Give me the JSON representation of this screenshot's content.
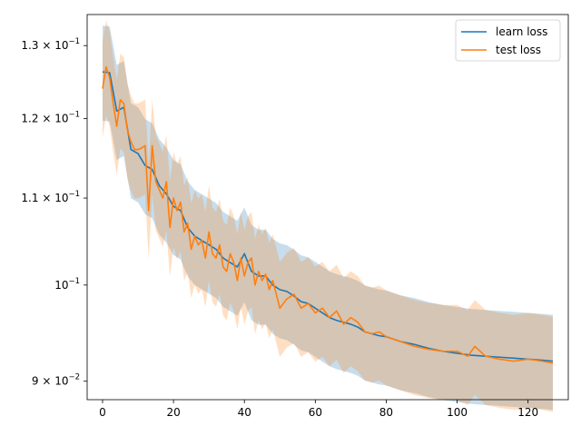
{
  "chart_data": {
    "type": "line",
    "title": "",
    "xlabel": "",
    "ylabel": "",
    "yscale": "log",
    "xlim": [
      -4.35,
      131.35
    ],
    "ylim": [
      0.0882,
      0.1345
    ],
    "grid": false,
    "legend_position": "top-right",
    "xticks": [
      0,
      20,
      40,
      60,
      80,
      100,
      120
    ],
    "xtick_labels": [
      "0",
      "20",
      "40",
      "60",
      "80",
      "100",
      "120"
    ],
    "yticks": [
      0.09,
      0.1,
      0.11,
      0.12,
      0.13
    ],
    "ytick_labels": [
      {
        "base": "9",
        "times": "×",
        "mant": "10",
        "exp": "−2"
      },
      {
        "base": "",
        "times": "",
        "mant": "10",
        "exp": "−1"
      },
      {
        "base": "1.1",
        "times": "×",
        "mant": "10",
        "exp": "−1"
      },
      {
        "base": "1.2",
        "times": "×",
        "mant": "10",
        "exp": "−1"
      },
      {
        "base": "1.3",
        "times": "×",
        "mant": "10",
        "exp": "−1"
      }
    ],
    "band_relative_halfwidth": 0.052,
    "series": [
      {
        "name": "learn loss",
        "color": "#1f77b4",
        "band_color": "#1f77b4",
        "x": [
          0,
          2,
          4,
          6,
          8,
          10,
          12,
          14,
          16,
          18,
          20,
          22,
          24,
          26,
          28,
          30,
          32,
          34,
          36,
          38,
          40,
          42,
          44,
          46,
          48,
          50,
          52,
          54,
          56,
          58,
          60,
          62,
          64,
          66,
          68,
          70,
          72,
          74,
          76,
          78,
          80,
          84,
          88,
          92,
          96,
          100,
          104,
          108,
          112,
          116,
          120,
          124,
          127
        ],
        "y": [
          0.1263,
          0.1262,
          0.121,
          0.1215,
          0.116,
          0.1155,
          0.114,
          0.1135,
          0.1115,
          0.1105,
          0.109,
          0.1085,
          0.1065,
          0.1055,
          0.105,
          0.1045,
          0.104,
          0.103,
          0.1025,
          0.102,
          0.1035,
          0.1015,
          0.101,
          0.101,
          0.1,
          0.0995,
          0.0993,
          0.0988,
          0.0982,
          0.098,
          0.0975,
          0.097,
          0.0965,
          0.0962,
          0.096,
          0.0958,
          0.0955,
          0.095,
          0.0948,
          0.0946,
          0.0945,
          0.094,
          0.0937,
          0.0933,
          0.093,
          0.0928,
          0.0926,
          0.0925,
          0.0924,
          0.0923,
          0.0922,
          0.0921,
          0.092
        ]
      },
      {
        "name": "test loss",
        "color": "#ff7f0e",
        "band_color": "#ff7f0e",
        "x": [
          0,
          1,
          2,
          3,
          4,
          5,
          6,
          7,
          8,
          9,
          10,
          11,
          12,
          13,
          14,
          15,
          16,
          17,
          18,
          19,
          20,
          21,
          22,
          23,
          24,
          25,
          26,
          27,
          28,
          29,
          30,
          31,
          32,
          33,
          34,
          35,
          36,
          37,
          38,
          39,
          40,
          41,
          42,
          43,
          44,
          45,
          46,
          47,
          48,
          49,
          50,
          52,
          54,
          56,
          58,
          60,
          62,
          64,
          66,
          68,
          70,
          72,
          74,
          76,
          78,
          80,
          84,
          88,
          92,
          96,
          100,
          103,
          105,
          108,
          112,
          116,
          120,
          124,
          127
        ],
        "y": [
          0.124,
          0.127,
          0.1255,
          0.122,
          0.119,
          0.1225,
          0.122,
          0.1185,
          0.117,
          0.116,
          0.116,
          0.1162,
          0.1165,
          0.1085,
          0.1165,
          0.112,
          0.111,
          0.11,
          0.112,
          0.1065,
          0.11,
          0.1085,
          0.1095,
          0.106,
          0.107,
          0.104,
          0.1055,
          0.1045,
          0.105,
          0.103,
          0.106,
          0.1035,
          0.103,
          0.1045,
          0.102,
          0.1015,
          0.1035,
          0.1025,
          0.1005,
          0.103,
          0.101,
          0.1025,
          0.103,
          0.1,
          0.1015,
          0.1005,
          0.1012,
          0.0995,
          0.1005,
          0.099,
          0.0975,
          0.0985,
          0.099,
          0.0975,
          0.098,
          0.097,
          0.0975,
          0.0965,
          0.0972,
          0.0958,
          0.0965,
          0.096,
          0.095,
          0.0948,
          0.095,
          0.0945,
          0.094,
          0.0935,
          0.0932,
          0.093,
          0.093,
          0.0925,
          0.0935,
          0.0925,
          0.0922,
          0.092,
          0.0922,
          0.092,
          0.0918
        ]
      }
    ]
  }
}
